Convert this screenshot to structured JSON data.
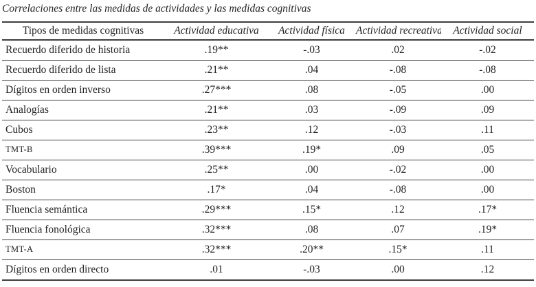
{
  "page": {
    "title": "Correlaciones entre las medidas de actividades y las medidas cognitivas"
  },
  "table": {
    "columns": [
      "Tipos de medidas cognitivas",
      "Actividad educativa",
      "Actividad física",
      "Actividad recreativa",
      "Actividad social"
    ],
    "rows": [
      {
        "label": "Recuerdo diferido de historia",
        "values": [
          ".19**",
          "-.03",
          ".02",
          "-.02"
        ]
      },
      {
        "label": "Recuerdo diferido de lista",
        "values": [
          ".21**",
          ".04",
          "-.08",
          "-.08"
        ]
      },
      {
        "label": "Dígitos en orden inverso",
        "values": [
          ".27***",
          ".08",
          "-.05",
          ".00"
        ]
      },
      {
        "label": "Analogías",
        "values": [
          ".21**",
          ".03",
          "-.09",
          ".09"
        ]
      },
      {
        "label": "Cubos",
        "values": [
          ".23**",
          ".12",
          "-.03",
          ".11"
        ]
      },
      {
        "label": "TMT-B",
        "values": [
          ".39***",
          ".19*",
          ".09",
          ".05"
        ]
      },
      {
        "label": "Vocabulario",
        "values": [
          ".25**",
          ".00",
          "-.02",
          ".00"
        ]
      },
      {
        "label": "Boston",
        "values": [
          ".17*",
          ".04",
          "-.08",
          ".00"
        ]
      },
      {
        "label": "Fluencia semántica",
        "values": [
          ".29***",
          ".15*",
          ".12",
          ".17*"
        ]
      },
      {
        "label": "Fluencia fonológica",
        "values": [
          ".32***",
          ".08",
          ".07",
          ".19*"
        ]
      },
      {
        "label": "TMT-A",
        "values": [
          ".32***",
          ".20**",
          ".15*",
          ".11"
        ]
      },
      {
        "label": "Dígitos en orden directo",
        "values": [
          ".01",
          "-.03",
          ".00",
          ".12"
        ]
      }
    ]
  }
}
